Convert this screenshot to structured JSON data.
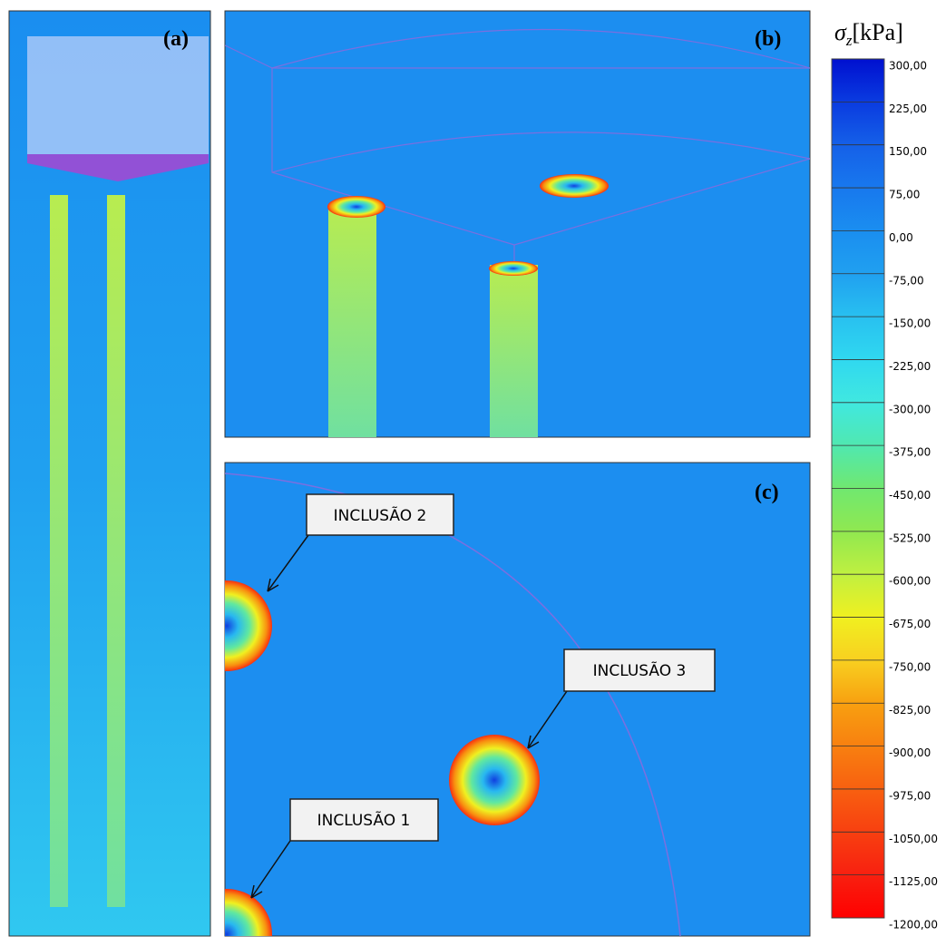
{
  "panels": [
    {
      "label": "(a)"
    },
    {
      "label": "(b)"
    },
    {
      "label": "(c)",
      "callouts": [
        "INCLUSÃO 2",
        "INCLUSÃO 3",
        "INCLUSÃO 1"
      ]
    }
  ],
  "colorbar": {
    "symbol": "σ",
    "subscript": "z",
    "unit": "[kPa]",
    "ticks": [
      {
        "value": 300,
        "label": "300,00"
      },
      {
        "value": 225,
        "label": "225,00"
      },
      {
        "value": 150,
        "label": "150,00"
      },
      {
        "value": 75,
        "label": "75,00"
      },
      {
        "value": 0,
        "label": "0,00"
      },
      {
        "value": -75,
        "label": "-75,00"
      },
      {
        "value": -150,
        "label": "-150,00"
      },
      {
        "value": -225,
        "label": "-225,00"
      },
      {
        "value": -300,
        "label": "-300,00"
      },
      {
        "value": -375,
        "label": "-375,00"
      },
      {
        "value": -450,
        "label": "-450,00"
      },
      {
        "value": -525,
        "label": "-525,00"
      },
      {
        "value": -600,
        "label": "-600,00"
      },
      {
        "value": -675,
        "label": "-675,00"
      },
      {
        "value": -750,
        "label": "-750,00"
      },
      {
        "value": -825,
        "label": "-825,00"
      },
      {
        "value": -900,
        "label": "-900,00"
      },
      {
        "value": -975,
        "label": "-975,00"
      },
      {
        "value": -1050,
        "label": "-1050,00"
      },
      {
        "value": -1125,
        "label": "-1125,00"
      },
      {
        "value": -1200,
        "label": "-1200,00"
      }
    ]
  }
}
